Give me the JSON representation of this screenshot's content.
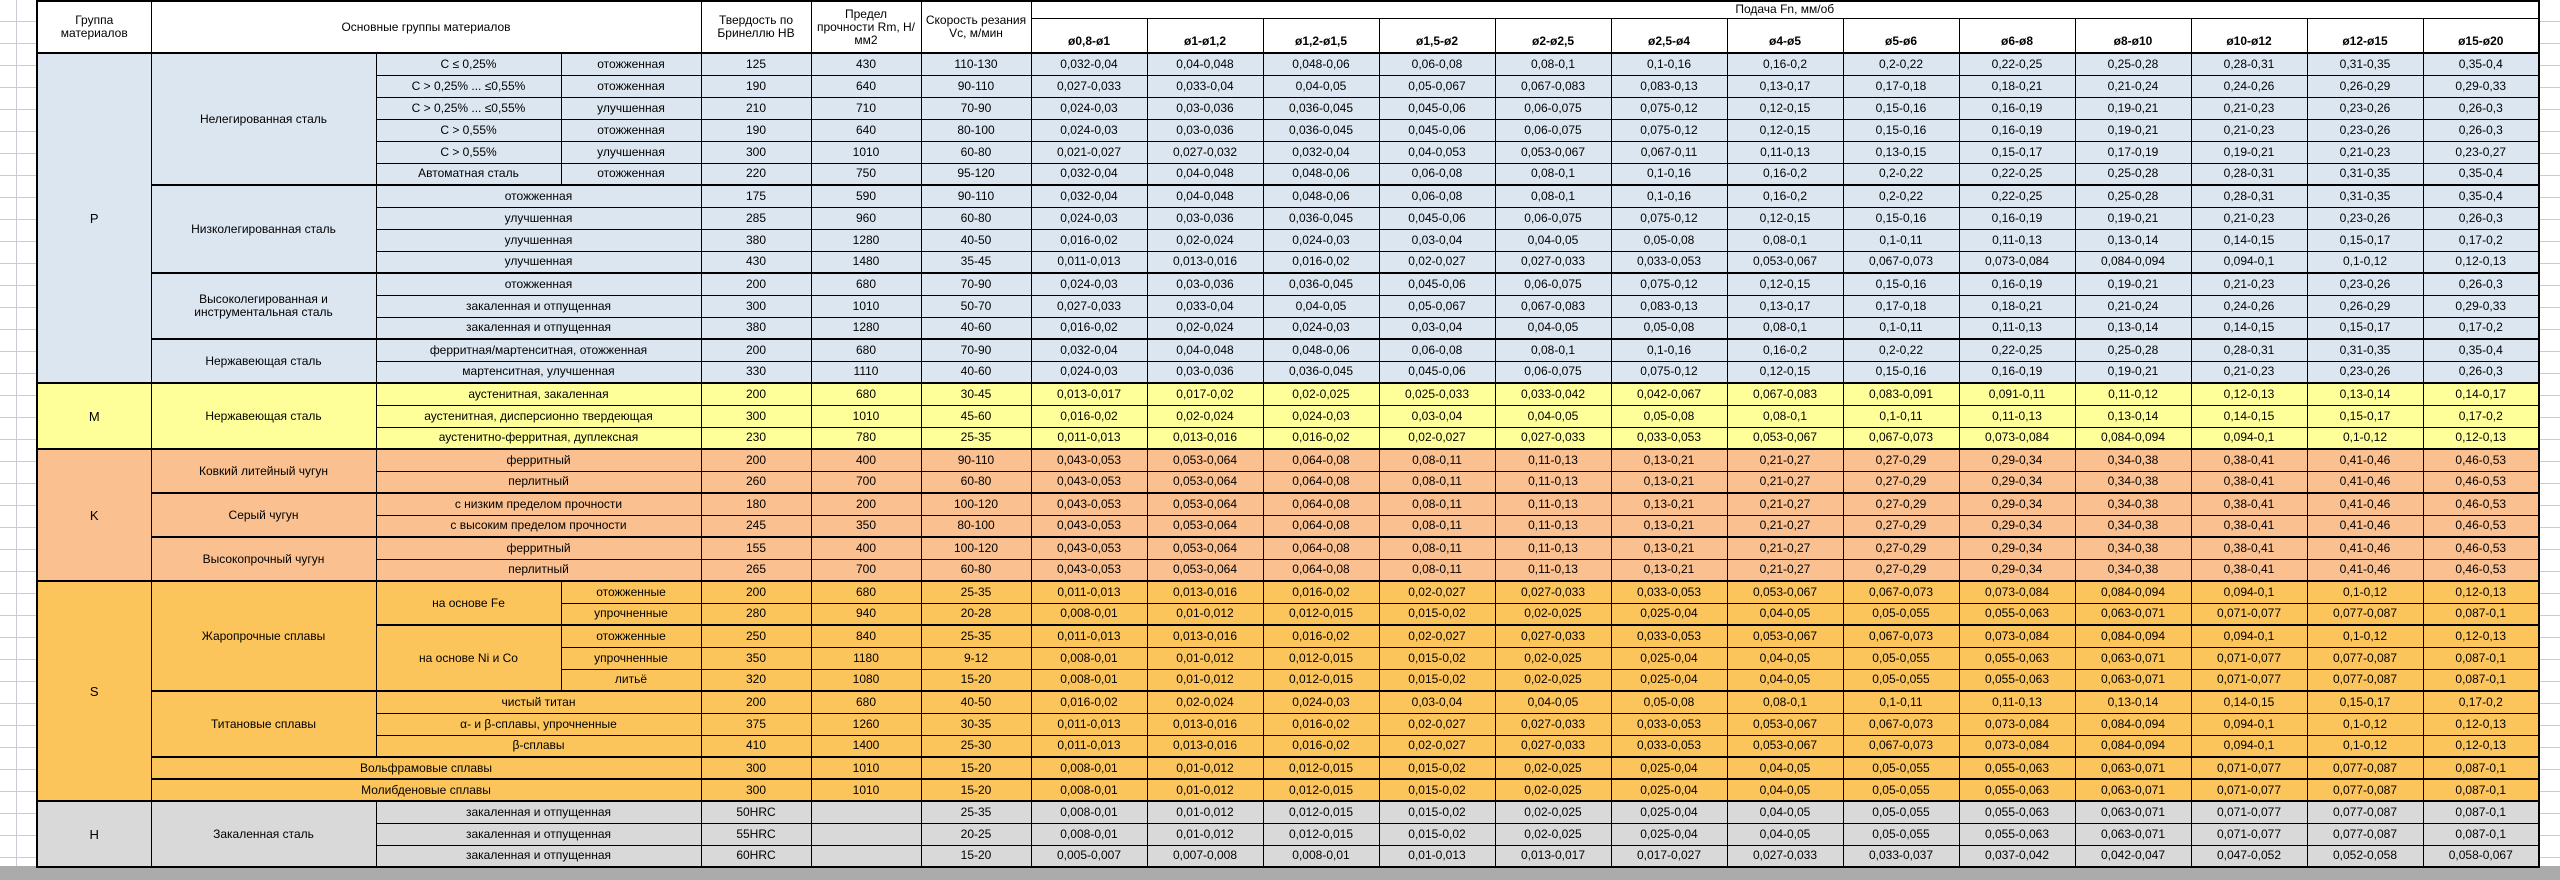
{
  "header": {
    "group": "Группа материалов",
    "materials": "Основные группы материалов",
    "hardness": "Твердость по Бринеллю HB",
    "strength": "Предел прочности Rm, Н/мм2",
    "speed": "Скорость резания Vc, м/мин",
    "feed": "Подача Fn, мм/об"
  },
  "feed_headers": [
    "ø0,8-ø1",
    "ø1-ø1,2",
    "ø1,2-ø1,5",
    "ø1,5-ø2",
    "ø2-ø2,5",
    "ø2,5-ø4",
    "ø4-ø5",
    "ø5-ø6",
    "ø6-ø8",
    "ø8-ø10",
    "ø10-ø12",
    "ø12-ø15",
    "ø15-ø20"
  ],
  "group_colors": {
    "P": "#dce6f1",
    "M": "#ffff99",
    "K": "#fac08f",
    "S": "#fcc55c",
    "H": "#d9d9d9"
  },
  "feed_sequences": {
    "S1": [
      "0,032-0,04",
      "0,04-0,048",
      "0,048-0,06",
      "0,06-0,08",
      "0,08-0,1",
      "0,1-0,16",
      "0,16-0,2",
      "0,2-0,22",
      "0,22-0,25",
      "0,25-0,28",
      "0,28-0,31",
      "0,31-0,35",
      "0,35-0,4"
    ],
    "S2": [
      "0,027-0,033",
      "0,033-0,04",
      "0,04-0,05",
      "0,05-0,067",
      "0,067-0,083",
      "0,083-0,13",
      "0,13-0,17",
      "0,17-0,18",
      "0,18-0,21",
      "0,21-0,24",
      "0,24-0,26",
      "0,26-0,29",
      "0,29-0,33"
    ],
    "S3": [
      "0,024-0,03",
      "0,03-0,036",
      "0,036-0,045",
      "0,045-0,06",
      "0,06-0,075",
      "0,075-0,12",
      "0,12-0,15",
      "0,15-0,16",
      "0,16-0,19",
      "0,19-0,21",
      "0,21-0,23",
      "0,23-0,26",
      "0,26-0,3"
    ],
    "S4": [
      "0,021-0,027",
      "0,027-0,032",
      "0,032-0,04",
      "0,04-0,053",
      "0,053-0,067",
      "0,067-0,11",
      "0,11-0,13",
      "0,13-0,15",
      "0,15-0,17",
      "0,17-0,19",
      "0,19-0,21",
      "0,21-0,23",
      "0,23-0,27"
    ],
    "S5": [
      "0,016-0,02",
      "0,02-0,024",
      "0,024-0,03",
      "0,03-0,04",
      "0,04-0,05",
      "0,05-0,08",
      "0,08-0,1",
      "0,1-0,11",
      "0,11-0,13",
      "0,13-0,14",
      "0,14-0,15",
      "0,15-0,17",
      "0,17-0,2"
    ],
    "S6": [
      "0,011-0,013",
      "0,013-0,016",
      "0,016-0,02",
      "0,02-0,027",
      "0,027-0,033",
      "0,033-0,053",
      "0,053-0,067",
      "0,067-0,073",
      "0,073-0,084",
      "0,084-0,094",
      "0,094-0,1",
      "0,1-0,12",
      "0,12-0,13"
    ],
    "S7": [
      "0,013-0,017",
      "0,017-0,02",
      "0,02-0,025",
      "0,025-0,033",
      "0,033-0,042",
      "0,042-0,067",
      "0,067-0,083",
      "0,083-0,091",
      "0,091-0,11",
      "0,11-0,12",
      "0,12-0,13",
      "0,13-0,14",
      "0,14-0,17"
    ],
    "S8": [
      "0,043-0,053",
      "0,053-0,064",
      "0,064-0,08",
      "0,08-0,11",
      "0,11-0,13",
      "0,13-0,21",
      "0,21-0,27",
      "0,27-0,29",
      "0,29-0,34",
      "0,34-0,38",
      "0,38-0,41",
      "0,41-0,46",
      "0,46-0,53"
    ],
    "S9": [
      "0,008-0,01",
      "0,01-0,012",
      "0,012-0,015",
      "0,015-0,02",
      "0,02-0,025",
      "0,025-0,04",
      "0,04-0,05",
      "0,05-0,055",
      "0,055-0,063",
      "0,063-0,071",
      "0,071-0,077",
      "0,077-0,087",
      "0,087-0,1"
    ],
    "S10": [
      "0,005-0,007",
      "0,007-0,008",
      "0,008-0,01",
      "0,01-0,013",
      "0,013-0,017",
      "0,017-0,027",
      "0,027-0,033",
      "0,033-0,037",
      "0,037-0,042",
      "0,042-0,047",
      "0,047-0,052",
      "0,052-0,058",
      "0,058-0,067"
    ]
  },
  "rows": [
    {
      "g": [
        "P",
        15
      ],
      "b": [
        "Нелегированная сталь",
        6
      ],
      "c": [
        "C ≤ 0,25%",
        1
      ],
      "d": "отожженная",
      "hb": "125",
      "rm": "430",
      "vc": "110-130",
      "f": "S1"
    },
    {
      "c": [
        "C > 0,25% ... ≤0,55%",
        1
      ],
      "d": "отожженная",
      "hb": "190",
      "rm": "640",
      "vc": "90-110",
      "f": "S2"
    },
    {
      "c": [
        "C > 0,25% ... ≤0,55%",
        1
      ],
      "d": "улучшенная",
      "hb": "210",
      "rm": "710",
      "vc": "70-90",
      "f": "S3"
    },
    {
      "c": [
        "C > 0,55%",
        1
      ],
      "d": "отожженная",
      "hb": "190",
      "rm": "640",
      "vc": "80-100",
      "f": "S3"
    },
    {
      "c": [
        "C > 0,55%",
        1
      ],
      "d": "улучшенная",
      "hb": "300",
      "rm": "1010",
      "vc": "60-80",
      "f": "S4"
    },
    {
      "c": [
        "Автоматная сталь",
        1
      ],
      "d": "отожженная",
      "hb": "220",
      "rm": "750",
      "vc": "95-120",
      "f": "S1"
    },
    {
      "sep": 1,
      "b": [
        "Низколегированная сталь",
        4
      ],
      "cd": "отожженная",
      "hb": "175",
      "rm": "590",
      "vc": "90-110",
      "f": "S1"
    },
    {
      "cd": "улучшенная",
      "hb": "285",
      "rm": "960",
      "vc": "60-80",
      "f": "S3"
    },
    {
      "cd": "улучшенная",
      "hb": "380",
      "rm": "1280",
      "vc": "40-50",
      "f": "S5"
    },
    {
      "cd": "улучшенная",
      "hb": "430",
      "rm": "1480",
      "vc": "35-45",
      "f": "S6"
    },
    {
      "sep": 1,
      "b": [
        "Высоколегированная и инструментальная сталь",
        3
      ],
      "cd": "отожженная",
      "hb": "200",
      "rm": "680",
      "vc": "70-90",
      "f": "S3"
    },
    {
      "cd": "закаленная и отпущенная",
      "hb": "300",
      "rm": "1010",
      "vc": "50-70",
      "f": "S2"
    },
    {
      "cd": "закаленная и отпущенная",
      "hb": "380",
      "rm": "1280",
      "vc": "40-60",
      "f": "S5"
    },
    {
      "sep": 1,
      "b": [
        "Нержавеющая сталь",
        2
      ],
      "cd": "ферритная/мартенситная, отожженная",
      "hb": "200",
      "rm": "680",
      "vc": "70-90",
      "f": "S1"
    },
    {
      "cd": "мартенситная, улучшенная",
      "hb": "330",
      "rm": "1110",
      "vc": "40-60",
      "f": "S3"
    },
    {
      "sep": 1,
      "g": [
        "M",
        3
      ],
      "b": [
        "Нержавеющая сталь",
        3
      ],
      "cd": "аустенитная, закаленная",
      "hb": "200",
      "rm": "680",
      "vc": "30-45",
      "f": "S7"
    },
    {
      "cd": "аустенитная, дисперсионно твердеющая",
      "hb": "300",
      "rm": "1010",
      "vc": "45-60",
      "f": "S5"
    },
    {
      "cd": "аустенитно-ферритная, дуплексная",
      "hb": "230",
      "rm": "780",
      "vc": "25-35",
      "f": "S6"
    },
    {
      "sep": 1,
      "g": [
        "K",
        6
      ],
      "b": [
        "Ковкий литейный чугун",
        2
      ],
      "cd": "ферритный",
      "hb": "200",
      "rm": "400",
      "vc": "90-110",
      "f": "S8"
    },
    {
      "cd": "перлитный",
      "hb": "260",
      "rm": "700",
      "vc": "60-80",
      "f": "S8"
    },
    {
      "sep": 1,
      "b": [
        "Серый чугун",
        2
      ],
      "cd": "с низким пределом прочности",
      "hb": "180",
      "rm": "200",
      "vc": "100-120",
      "f": "S8"
    },
    {
      "cd": "с высоким пределом прочности",
      "hb": "245",
      "rm": "350",
      "vc": "80-100",
      "f": "S8"
    },
    {
      "sep": 1,
      "b": [
        "Высокопрочный чугун",
        2
      ],
      "cd": "ферритный",
      "hb": "155",
      "rm": "400",
      "vc": "100-120",
      "f": "S8"
    },
    {
      "cd": "перлитный",
      "hb": "265",
      "rm": "700",
      "vc": "60-80",
      "f": "S8"
    },
    {
      "sep": 1,
      "g": [
        "S",
        10
      ],
      "b": [
        "Жаропрочные сплавы",
        5
      ],
      "c": [
        "на основе Fe",
        2
      ],
      "d": "отожженные",
      "hb": "200",
      "rm": "680",
      "vc": "25-35",
      "f": "S6"
    },
    {
      "d": "упрочненные",
      "hb": "280",
      "rm": "940",
      "vc": "20-28",
      "f": "S9"
    },
    {
      "sep": 1,
      "c": [
        "на основе Ni и Co",
        3
      ],
      "d": "отожженные",
      "hb": "250",
      "rm": "840",
      "vc": "25-35",
      "f": "S6"
    },
    {
      "d": "упрочненные",
      "hb": "350",
      "rm": "1180",
      "vc": "9-12",
      "f": "S9"
    },
    {
      "d": "литьё",
      "hb": "320",
      "rm": "1080",
      "vc": "15-20",
      "f": "S9"
    },
    {
      "sep": 1,
      "b": [
        "Титановые сплавы",
        3
      ],
      "cd": "чистый титан",
      "hb": "200",
      "rm": "680",
      "vc": "40-50",
      "f": "S5"
    },
    {
      "cd": "α- и β-сплавы, упрочненные",
      "hb": "375",
      "rm": "1260",
      "vc": "30-35",
      "f": "S6"
    },
    {
      "cd": "β-сплавы",
      "hb": "410",
      "rm": "1400",
      "vc": "25-30",
      "f": "S6"
    },
    {
      "sep": 1,
      "b3": "Вольфрамовые сплавы",
      "hb": "300",
      "rm": "1010",
      "vc": "15-20",
      "f": "S9"
    },
    {
      "sep": 1,
      "b3": "Молибденовые сплавы",
      "hb": "300",
      "rm": "1010",
      "vc": "15-20",
      "f": "S9"
    },
    {
      "sep": 1,
      "g": [
        "H",
        3
      ],
      "b": [
        "Закаленная сталь",
        3
      ],
      "cd": "закаленная и отпущенная",
      "hb": "50HRC",
      "rm": "",
      "vc": "25-35",
      "f": "S9"
    },
    {
      "cd": "закаленная и отпущенная",
      "hb": "55HRC",
      "rm": "",
      "vc": "20-25",
      "f": "S9"
    },
    {
      "cd": "закаленная и отпущенная",
      "hb": "60HRC",
      "rm": "",
      "vc": "15-20",
      "f": "S10"
    }
  ]
}
